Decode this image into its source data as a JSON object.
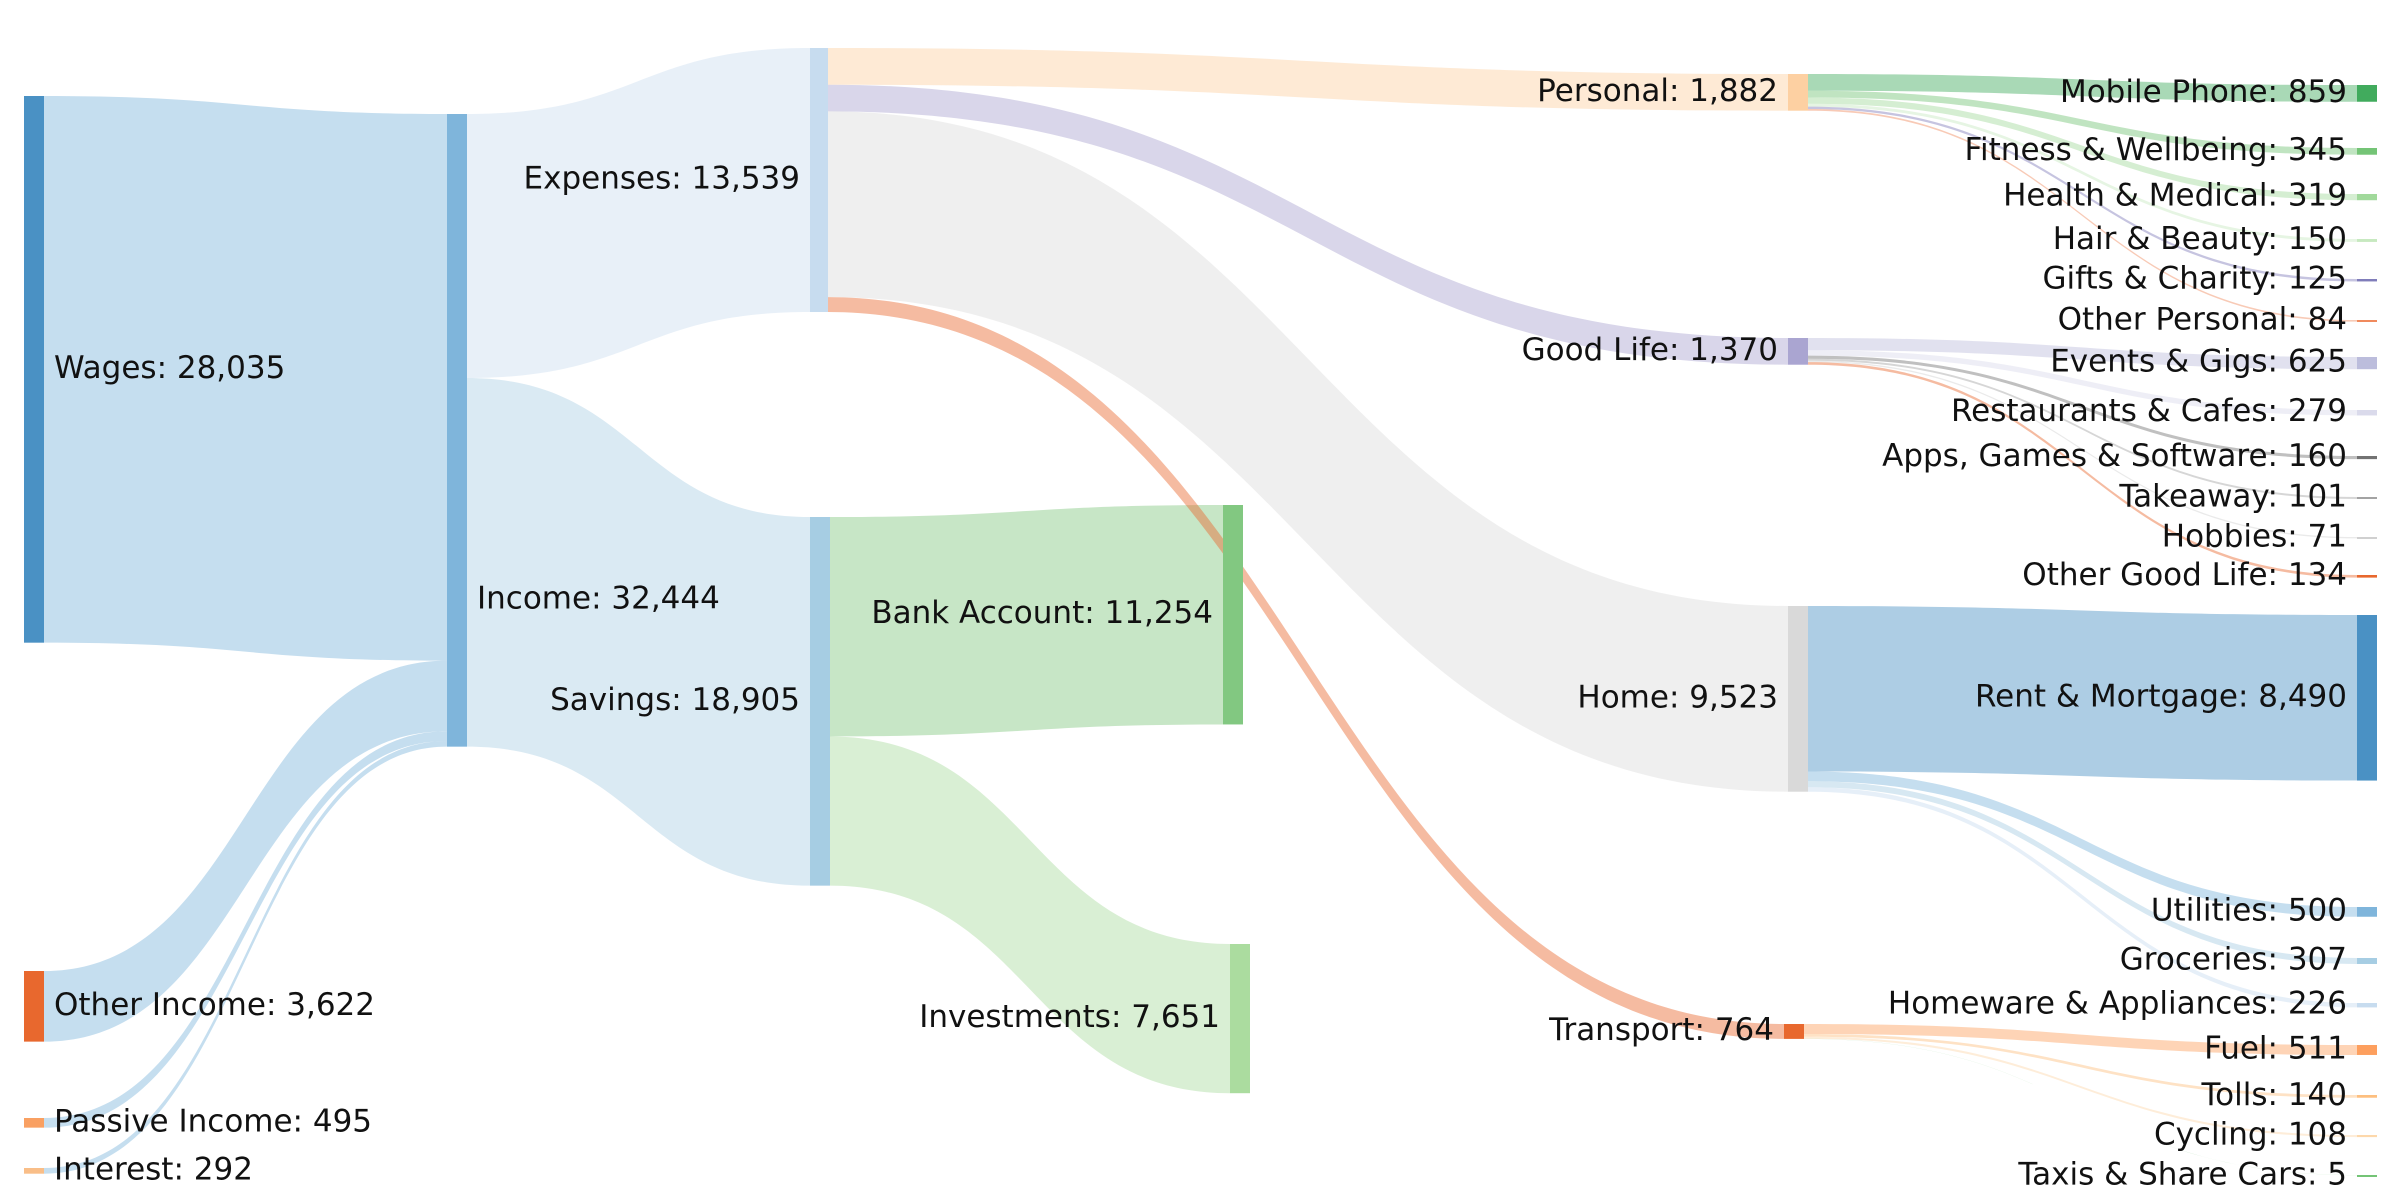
{
  "chart_data": {
    "type": "sankey",
    "title": "",
    "nodes": [
      {
        "id": "wages",
        "label": "Wages: 28,035",
        "value": 28035,
        "color": "#4a91c4"
      },
      {
        "id": "other_income",
        "label": "Other Income: 3,622",
        "value": 3622,
        "color": "#e8682e"
      },
      {
        "id": "passive_income",
        "label": "Passive Income: 495",
        "value": 495,
        "color": "#f9a062"
      },
      {
        "id": "interest",
        "label": "Interest: 292",
        "value": 292,
        "color": "#f9be88"
      },
      {
        "id": "income",
        "label": "Income: 32,444",
        "value": 32444,
        "color": "#7fb5db"
      },
      {
        "id": "expenses",
        "label": "Expenses: 13,539",
        "value": 13539,
        "color": "#c7dcef"
      },
      {
        "id": "savings",
        "label": "Savings: 18,905",
        "value": 18905,
        "color": "#a6cde3"
      },
      {
        "id": "bank_account",
        "label": "Bank Account: 11,254",
        "value": 11254,
        "color": "#82c881"
      },
      {
        "id": "investments",
        "label": "Investments: 7,651",
        "value": 7651,
        "color": "#abdc9f"
      },
      {
        "id": "personal",
        "label": "Personal: 1,882",
        "value": 1882,
        "color": "#fdd0a2"
      },
      {
        "id": "good_life",
        "label": "Good Life: 1,370",
        "value": 1370,
        "color": "#aaa5d1"
      },
      {
        "id": "home",
        "label": "Home: 9,523",
        "value": 9523,
        "color": "#d9d9d9"
      },
      {
        "id": "transport",
        "label": "Transport: 764",
        "value": 764,
        "color": "#e8682e"
      },
      {
        "id": "mobile_phone",
        "label": "Mobile Phone: 859",
        "value": 859,
        "color": "#41ab5d"
      },
      {
        "id": "fitness",
        "label": "Fitness & Wellbeing: 345",
        "value": 345,
        "color": "#74c476"
      },
      {
        "id": "health",
        "label": "Health & Medical: 319",
        "value": 319,
        "color": "#a1d99b"
      },
      {
        "id": "hair",
        "label": "Hair & Beauty: 150",
        "value": 150,
        "color": "#c7e9c0"
      },
      {
        "id": "gifts",
        "label": "Gifts & Charity: 125",
        "value": 125,
        "color": "#807dba"
      },
      {
        "id": "other_personal",
        "label": "Other Personal: 84",
        "value": 84,
        "color": "#f08a5d"
      },
      {
        "id": "events",
        "label": "Events & Gigs: 625",
        "value": 625,
        "color": "#bcbddc"
      },
      {
        "id": "restaurants",
        "label": "Restaurants & Cafes: 279",
        "value": 279,
        "color": "#dadaeb"
      },
      {
        "id": "apps",
        "label": "Apps, Games & Software: 160",
        "value": 160,
        "color": "#737373"
      },
      {
        "id": "takeaway",
        "label": "Takeaway: 101",
        "value": 101,
        "color": "#a3a3a3"
      },
      {
        "id": "hobbies",
        "label": "Hobbies: 71",
        "value": 71,
        "color": "#d0d0d0"
      },
      {
        "id": "other_good_life",
        "label": "Other Good Life: 134",
        "value": 134,
        "color": "#e8682e"
      },
      {
        "id": "rent",
        "label": "Rent & Mortgage: 8,490",
        "value": 8490,
        "color": "#4a91c4"
      },
      {
        "id": "utilities",
        "label": "Utilities: 500",
        "value": 500,
        "color": "#7fb5db"
      },
      {
        "id": "groceries",
        "label": "Groceries: 307",
        "value": 307,
        "color": "#a6cde3"
      },
      {
        "id": "homeware",
        "label": "Homeware & Appliances: 226",
        "value": 226,
        "color": "#c7dcef"
      },
      {
        "id": "fuel",
        "label": "Fuel: 511",
        "value": 511,
        "color": "#fd9f5e"
      },
      {
        "id": "tolls",
        "label": "Tolls: 140",
        "value": 140,
        "color": "#fdbf7f"
      },
      {
        "id": "cycling",
        "label": "Cycling: 108",
        "value": 108,
        "color": "#fdd8ab"
      },
      {
        "id": "taxis",
        "label": "Taxis & Share Cars: 5",
        "value": 5,
        "color": "#74c476"
      }
    ],
    "links": [
      {
        "source": "wages",
        "target": "income",
        "value": 28035
      },
      {
        "source": "other_income",
        "target": "income",
        "value": 3622
      },
      {
        "source": "passive_income",
        "target": "income",
        "value": 495
      },
      {
        "source": "interest",
        "target": "income",
        "value": 292
      },
      {
        "source": "income",
        "target": "expenses",
        "value": 13539
      },
      {
        "source": "income",
        "target": "savings",
        "value": 18905
      },
      {
        "source": "savings",
        "target": "bank_account",
        "value": 11254
      },
      {
        "source": "savings",
        "target": "investments",
        "value": 7651
      },
      {
        "source": "expenses",
        "target": "personal",
        "value": 1882
      },
      {
        "source": "expenses",
        "target": "good_life",
        "value": 1370
      },
      {
        "source": "expenses",
        "target": "home",
        "value": 9523
      },
      {
        "source": "expenses",
        "target": "transport",
        "value": 764
      },
      {
        "source": "personal",
        "target": "mobile_phone",
        "value": 859
      },
      {
        "source": "personal",
        "target": "fitness",
        "value": 345
      },
      {
        "source": "personal",
        "target": "health",
        "value": 319
      },
      {
        "source": "personal",
        "target": "hair",
        "value": 150
      },
      {
        "source": "personal",
        "target": "gifts",
        "value": 125
      },
      {
        "source": "personal",
        "target": "other_personal",
        "value": 84
      },
      {
        "source": "good_life",
        "target": "events",
        "value": 625
      },
      {
        "source": "good_life",
        "target": "restaurants",
        "value": 279
      },
      {
        "source": "good_life",
        "target": "apps",
        "value": 160
      },
      {
        "source": "good_life",
        "target": "takeaway",
        "value": 101
      },
      {
        "source": "good_life",
        "target": "hobbies",
        "value": 71
      },
      {
        "source": "good_life",
        "target": "other_good_life",
        "value": 134
      },
      {
        "source": "home",
        "target": "rent",
        "value": 8490
      },
      {
        "source": "home",
        "target": "utilities",
        "value": 500
      },
      {
        "source": "home",
        "target": "groceries",
        "value": 307
      },
      {
        "source": "home",
        "target": "homeware",
        "value": 226
      },
      {
        "source": "transport",
        "target": "fuel",
        "value": 511
      },
      {
        "source": "transport",
        "target": "tolls",
        "value": 140
      },
      {
        "source": "transport",
        "target": "cycling",
        "value": 108
      },
      {
        "source": "transport",
        "target": "taxis",
        "value": 5
      }
    ]
  }
}
